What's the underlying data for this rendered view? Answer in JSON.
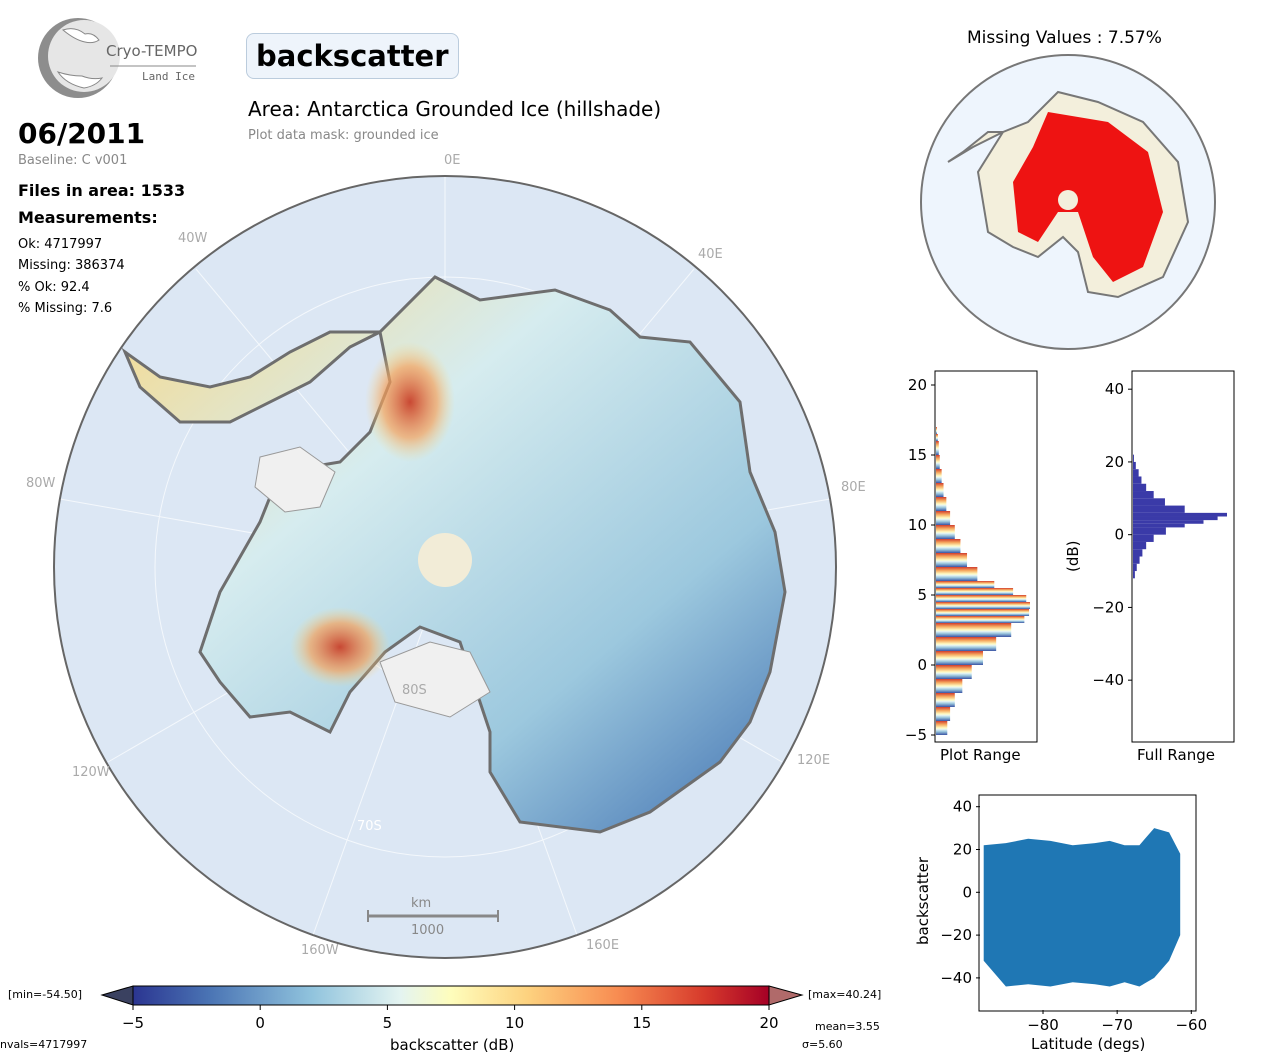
{
  "logo": {
    "name": "Cryo-TEMPO",
    "sub": "Land Ice"
  },
  "header": {
    "parameter": "backscatter",
    "area_title": "Area: Antarctica Grounded Ice (hillshade)",
    "mask": "Plot data mask: grounded ice",
    "date": "06/2011",
    "baseline": "Baseline: C v001",
    "files": "Files in area: 1533",
    "measurements": "Measurements:",
    "ok": "Ok: 4717997",
    "missing": "Missing: 386374",
    "pct_ok": "% Ok: 92.4",
    "pct_missing": "% Missing: 7.6"
  },
  "map": {
    "grid_labels": {
      "lon_0": "0E",
      "lon_40w": "40W",
      "lon_40e": "40E",
      "lon_80w": "80W",
      "lon_80e": "80E",
      "lon_120w": "120W",
      "lon_120e": "120E",
      "lon_160w": "160W",
      "lon_160e": "160E",
      "lat_70s": "70S",
      "lat_80s": "80S"
    },
    "scalebar": {
      "unit": "km",
      "value": "1000"
    }
  },
  "missing_map": {
    "title": "Missing Values : 7.57%"
  },
  "colors": {
    "ocean": "#dde8f5",
    "ice_shelf": "#efefef",
    "missing": "#ee0000",
    "land_ok": "#f3efdc",
    "hist_full": "#3a3aa8",
    "scatter": "#1f77b4"
  },
  "chart_data": [
    {
      "type": "bar",
      "name": "plot-range-histogram",
      "orientation": "horizontal",
      "xlabel": "Plot Range",
      "ylabel": "",
      "ylim": [
        -5.5,
        21
      ],
      "yticks": [
        -5,
        0,
        5,
        10,
        15,
        20
      ],
      "bins": [
        -5,
        -4,
        -3,
        -2,
        -1,
        0,
        1,
        2,
        3,
        3.5,
        4,
        4.5,
        5,
        5.5,
        6,
        7,
        8,
        9,
        10,
        11,
        12,
        13,
        14,
        15,
        16,
        16.5
      ],
      "values": [
        0.12,
        0.15,
        0.2,
        0.28,
        0.38,
        0.5,
        0.64,
        0.8,
        0.94,
        0.99,
        1.0,
        0.96,
        0.82,
        0.62,
        0.44,
        0.33,
        0.26,
        0.2,
        0.15,
        0.11,
        0.08,
        0.06,
        0.04,
        0.03,
        0.02,
        0.01
      ]
    },
    {
      "type": "bar",
      "name": "full-range-histogram",
      "orientation": "horizontal",
      "xlabel": "Full Range",
      "ylabel": "(dB)",
      "ylim": [
        -57,
        45
      ],
      "yticks": [
        -40,
        -20,
        0,
        20,
        40
      ],
      "bins": [
        -12,
        -10,
        -8,
        -6,
        -4,
        -2,
        0,
        2,
        3,
        4,
        5,
        6,
        8,
        10,
        12,
        14,
        16,
        18,
        20
      ],
      "values": [
        0.02,
        0.04,
        0.07,
        0.1,
        0.14,
        0.22,
        0.35,
        0.55,
        0.75,
        0.9,
        1.0,
        0.55,
        0.34,
        0.22,
        0.14,
        0.09,
        0.06,
        0.03,
        0.01
      ]
    },
    {
      "type": "scatter",
      "name": "latitude-scatter",
      "xlabel": "Latitude (degs)",
      "ylabel": "backscatter",
      "xlim": [
        -88.5,
        -59.5
      ],
      "ylim": [
        -55,
        45
      ],
      "xticks": [
        -80,
        -70,
        -60
      ],
      "yticks": [
        -40,
        -20,
        0,
        20,
        40
      ],
      "band": {
        "x": [
          -88,
          -85,
          -82,
          -79,
          -76,
          -73,
          -71,
          -69,
          -67,
          -65,
          -63,
          -61.5
        ],
        "upper": [
          22,
          23,
          25,
          24,
          22,
          23,
          24,
          22,
          22,
          30,
          28,
          18
        ],
        "lower": [
          -32,
          -44,
          -43,
          -44,
          -42,
          -43,
          -44,
          -42,
          -44,
          -40,
          -32,
          -20
        ]
      }
    }
  ],
  "colorbar": {
    "label": "backscatter (dB)",
    "ticks": [
      -5,
      0,
      5,
      10,
      15,
      20
    ],
    "vmin": -5,
    "vmax": 20,
    "min_label": "[min=-54.50]",
    "max_label": "[max=40.24]",
    "mean": "mean=3.55",
    "sigma": "σ=5.60",
    "nvals": "nvals=4717997"
  }
}
